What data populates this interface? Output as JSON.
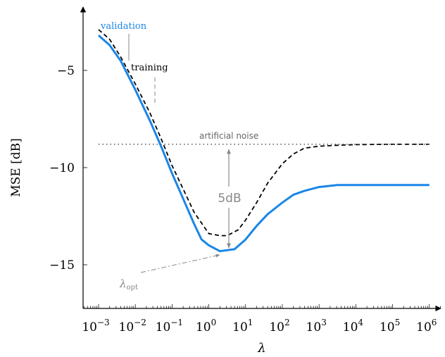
{
  "chart_data": {
    "type": "line",
    "title": "",
    "xlabel": "λ",
    "ylabel": "MSE [dB]",
    "x_scale": "log",
    "xlim_exponent": [
      -3.4,
      6.4
    ],
    "ylim": [
      -17,
      -2
    ],
    "xtick_labels": [
      {
        "exp": -3,
        "base": "10",
        "power": "−3"
      },
      {
        "exp": -2,
        "base": "10",
        "power": "−2"
      },
      {
        "exp": -1,
        "base": "10",
        "power": "−1"
      },
      {
        "exp": 0,
        "base": "10",
        "power": "0"
      },
      {
        "exp": 1,
        "base": "10",
        "power": "1"
      },
      {
        "exp": 2,
        "base": "10",
        "power": "2"
      },
      {
        "exp": 3,
        "base": "10",
        "power": "3"
      },
      {
        "exp": 4,
        "base": "10",
        "power": "4"
      },
      {
        "exp": 5,
        "base": "10",
        "power": "5"
      },
      {
        "exp": 6,
        "base": "10",
        "power": "6"
      }
    ],
    "yticks": [
      {
        "value": -5,
        "label": "−5"
      },
      {
        "value": -10,
        "label": "−10"
      },
      {
        "value": -15,
        "label": "−15"
      }
    ],
    "series": [
      {
        "name": "validation",
        "color": "#1a86e8",
        "style": "solid",
        "x_exponent": [
          -3,
          -2.7,
          -2.4,
          -2,
          -1.6,
          -1.3,
          -1,
          -0.7,
          -0.4,
          -0.2,
          0,
          0.3,
          0.7,
          1,
          1.3,
          1.6,
          2,
          2.3,
          2.6,
          3,
          3.5,
          4,
          5,
          6
        ],
        "y": [
          -3.2,
          -3.7,
          -4.5,
          -6.0,
          -7.6,
          -8.9,
          -10.3,
          -11.6,
          -12.9,
          -13.7,
          -14.0,
          -14.3,
          -14.2,
          -13.7,
          -13.0,
          -12.4,
          -11.8,
          -11.4,
          -11.2,
          -11.0,
          -10.9,
          -10.9,
          -10.9,
          -10.9
        ]
      },
      {
        "name": "training",
        "color": "#000000",
        "style": "dashed",
        "x_exponent": [
          -3,
          -2.7,
          -2.4,
          -2,
          -1.6,
          -1.3,
          -1,
          -0.7,
          -0.4,
          0,
          0.3,
          0.5,
          0.8,
          1,
          1.3,
          1.6,
          2,
          2.3,
          2.6,
          3,
          3.5,
          4,
          5,
          6
        ],
        "y": [
          -2.9,
          -3.4,
          -4.3,
          -5.7,
          -7.2,
          -8.5,
          -9.9,
          -11.1,
          -12.3,
          -13.4,
          -13.5,
          -13.5,
          -13.2,
          -12.7,
          -11.8,
          -10.8,
          -9.8,
          -9.3,
          -9.0,
          -8.9,
          -8.85,
          -8.82,
          -8.8,
          -8.8
        ]
      }
    ],
    "reference_line": {
      "label": "artificial noise",
      "y": -8.8,
      "style": "dotted",
      "color": "#555555"
    },
    "annotations": {
      "gap_label": "5dB",
      "series_label_validation": "validation",
      "series_label_training": "training",
      "opt_label": "λ",
      "opt_subscript": "opt",
      "annotation_color": "#888888"
    },
    "grid": false,
    "legend": "none (inline labels)"
  }
}
